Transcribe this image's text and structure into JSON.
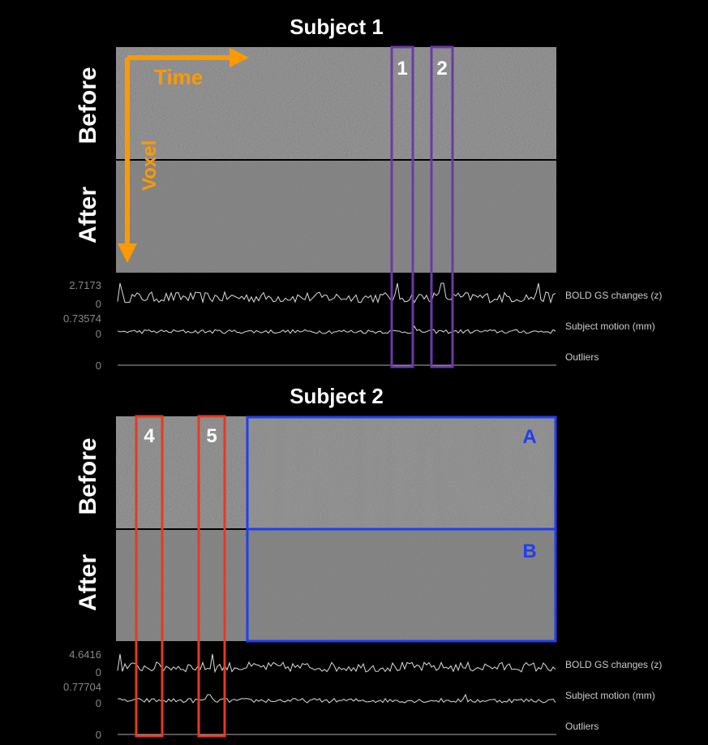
{
  "panels": [
    {
      "title": "Subject 1",
      "row_labels": [
        "Before",
        "After"
      ],
      "arrows": {
        "time": "Time",
        "voxel": "Voxel"
      },
      "traces": [
        {
          "max": "2.7173",
          "min": "0",
          "label": "BOLD GS changes (z)"
        },
        {
          "max": "0.73574",
          "min": "0",
          "label": "Subject motion (mm)"
        },
        {
          "min": "0",
          "label": "Outliers"
        }
      ],
      "boxes": [
        "1",
        "2"
      ]
    },
    {
      "title": "Subject 2",
      "row_labels": [
        "Before",
        "After"
      ],
      "traces": [
        {
          "max": "4.6416",
          "min": "0",
          "label": "BOLD GS changes (z)"
        },
        {
          "max": "0.77704",
          "min": "0",
          "label": "Subject motion (mm)"
        },
        {
          "min": "0",
          "label": "Outliers"
        }
      ],
      "boxes": [
        "4",
        "5",
        "A",
        "B"
      ]
    }
  ]
}
